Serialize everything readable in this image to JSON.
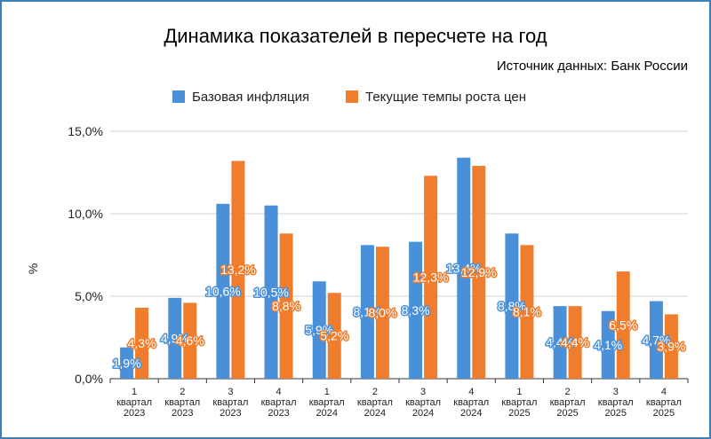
{
  "chart_data": {
    "type": "bar",
    "title": "Динамика показателей в пересчете на год",
    "subtitle": "Источник данных: Банк России",
    "ylabel": "%",
    "xlabel": "",
    "ylim": [
      0,
      15
    ],
    "yticks": [
      "0,0%",
      "5,0%",
      "10,0%",
      "15,0%"
    ],
    "ytick_values": [
      0,
      5,
      10,
      15
    ],
    "grid": true,
    "legend_position": "top",
    "categories": [
      [
        "1",
        "квартал",
        "2023"
      ],
      [
        "2",
        "квартал",
        "2023"
      ],
      [
        "3",
        "квартал",
        "2023"
      ],
      [
        "4",
        "квартал",
        "2023"
      ],
      [
        "1",
        "квартал",
        "2024"
      ],
      [
        "2",
        "квартал",
        "2024"
      ],
      [
        "3",
        "квартал",
        "2024"
      ],
      [
        "4",
        "квартал",
        "2024"
      ],
      [
        "1",
        "квартал",
        "2025"
      ],
      [
        "2",
        "квартал",
        "2025"
      ],
      [
        "3",
        "квартал",
        "2025"
      ],
      [
        "4",
        "квартал",
        "2025"
      ]
    ],
    "series": [
      {
        "name": "Базовая инфляция",
        "color": "#4a90d9",
        "values": [
          1.9,
          4.9,
          10.6,
          10.5,
          5.9,
          8.1,
          8.3,
          13.4,
          8.8,
          4.4,
          4.1,
          4.7
        ],
        "labels": [
          "1,9%",
          "4,9%",
          "10,6%",
          "10,5%",
          "5,9%",
          "8,1%",
          "8,3%",
          "13,4%",
          "8,8%",
          "4,4%",
          "4,1%",
          "4,7%"
        ]
      },
      {
        "name": "Текущие темпы роста цен",
        "color": "#ef7d2d",
        "values": [
          4.3,
          4.6,
          13.2,
          8.8,
          5.2,
          8.0,
          12.3,
          12.9,
          8.1,
          4.4,
          6.5,
          3.9
        ],
        "labels": [
          "4,3%",
          "4,6%",
          "13,2%",
          "8,8%",
          "5,2%",
          "8,0%",
          "12,3%",
          "12,9%",
          "8,1%",
          "4,4%",
          "6,5%",
          "3,9%"
        ]
      }
    ]
  }
}
